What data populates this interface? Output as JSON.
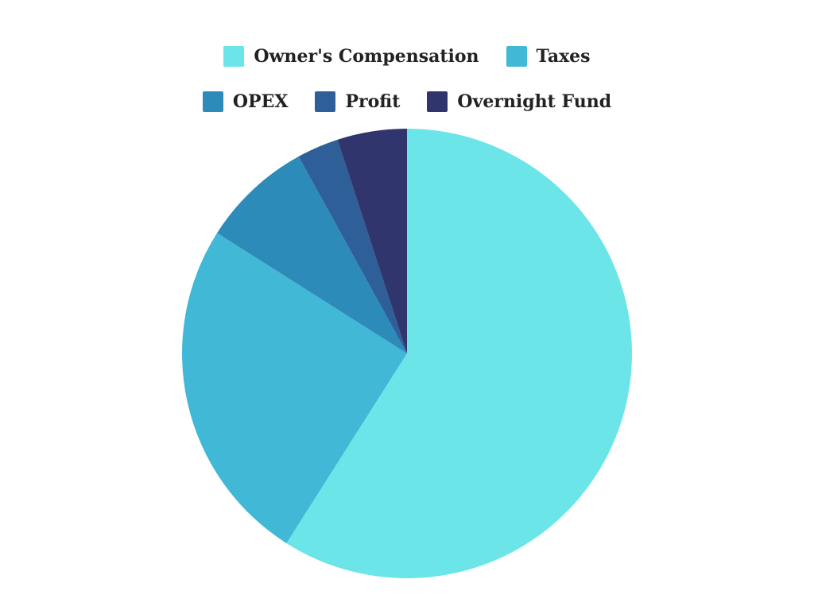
{
  "chart_data": {
    "type": "pie",
    "title": "",
    "legend_position": "top",
    "slices": [
      {
        "label": "Owner's Compensation",
        "value": 59,
        "color": "#6be5e8"
      },
      {
        "label": "Taxes",
        "value": 25,
        "color": "#41b8d5"
      },
      {
        "label": "OPEX",
        "value": 8,
        "color": "#2d8bba"
      },
      {
        "label": "Profit",
        "value": 3,
        "color": "#2f5f98"
      },
      {
        "label": "Overnight Fund",
        "value": 5,
        "color": "#31356e"
      }
    ]
  }
}
